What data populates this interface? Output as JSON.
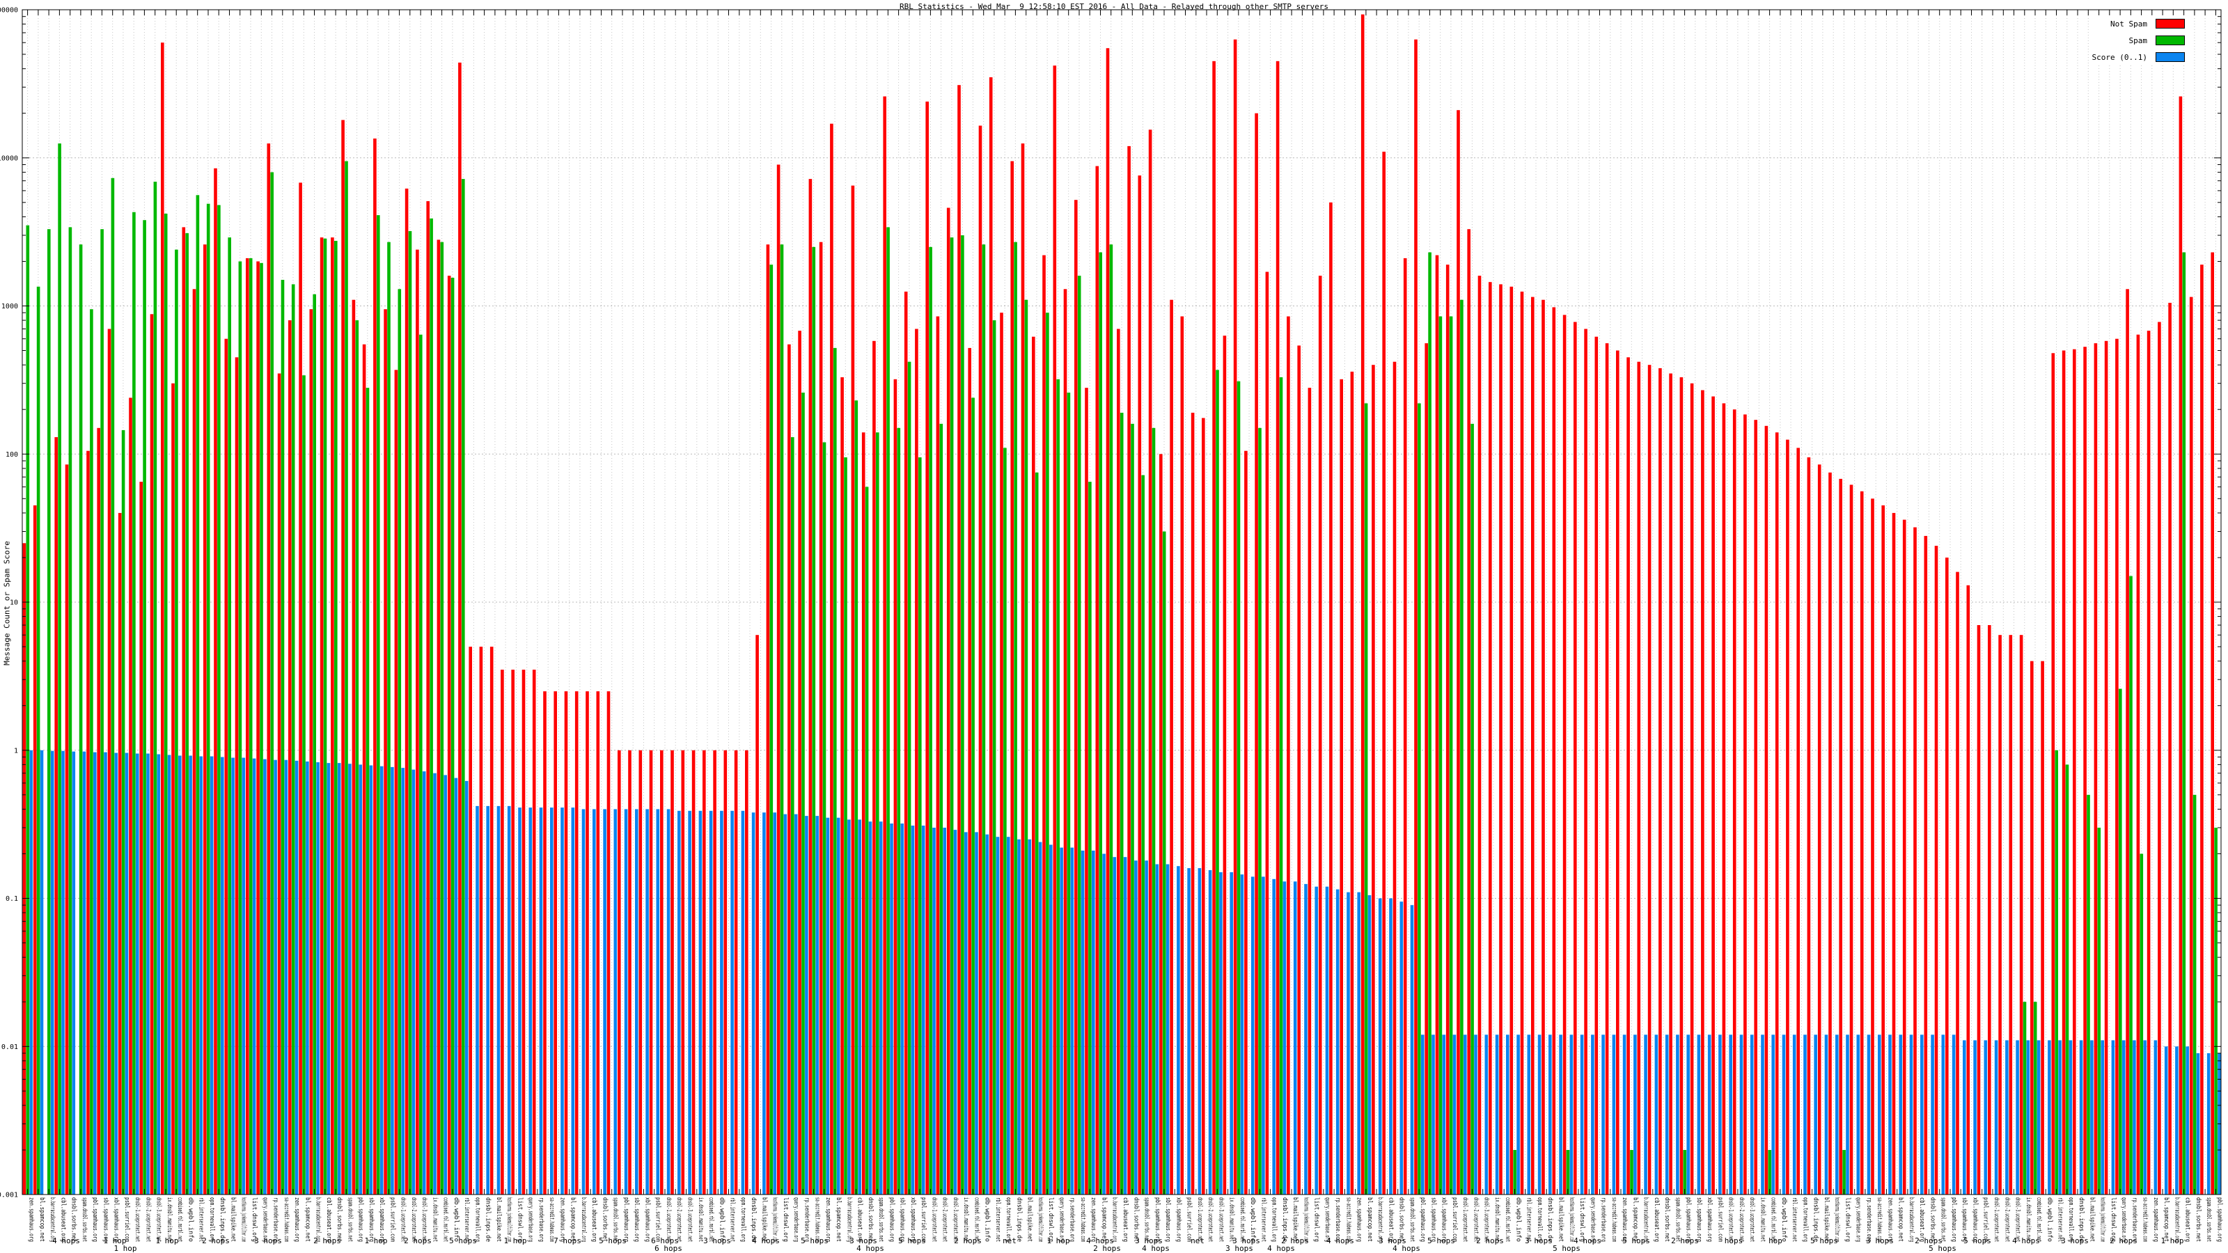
{
  "title": "RBL Statistics - Wed Mar  9 12:58:10 EST 2016 - All Data - Relayed through other SMTP servers",
  "legend": {
    "items": [
      {
        "label": "Not Spam",
        "color": "#ff0000"
      },
      {
        "label": "Spam",
        "color": "#00b800"
      },
      {
        "label": "Score (0..1)",
        "color": "#0b85f0"
      }
    ]
  },
  "y_axis": {
    "label": "Message Count or Spam Score",
    "scale": "log",
    "min": 0.001,
    "max": 100000,
    "tick_labels": [
      "100000",
      "10000",
      "1000",
      "100",
      "10",
      "1",
      "0.1",
      "0.01",
      "0.001"
    ]
  },
  "x_axis": {
    "hops_labels_row1": [
      {
        "t": "4 hops",
        "x": 95
      },
      {
        "t": "1 hop",
        "x": 165
      },
      {
        "t": "1 hop",
        "x": 240
      },
      {
        "t": "2 hops",
        "x": 310
      },
      {
        "t": "3 hops",
        "x": 385
      },
      {
        "t": "2 hops",
        "x": 470
      },
      {
        "t": "1 hop",
        "x": 540
      },
      {
        "t": "2 hops",
        "x": 600
      },
      {
        "t": "5 hops",
        "x": 665
      },
      {
        "t": "1 hop",
        "x": 740
      },
      {
        "t": "7 hops",
        "x": 815
      },
      {
        "t": "5 hops",
        "x": 880
      },
      {
        "t": "6 hops",
        "x": 955
      },
      {
        "t": "3 hops",
        "x": 1030
      },
      {
        "t": "4 hops",
        "x": 1100
      },
      {
        "t": "5 hops",
        "x": 1170
      },
      {
        "t": "3 hops",
        "x": 1240
      },
      {
        "t": "5 hops",
        "x": 1310
      },
      {
        "t": "2 hops",
        "x": 1390
      },
      {
        "t": "net",
        "x": 1450
      },
      {
        "t": "1 hop",
        "x": 1520
      },
      {
        "t": "4 hops",
        "x": 1580
      },
      {
        "t": "3 hops",
        "x": 1650
      },
      {
        "t": "net",
        "x": 1720
      },
      {
        "t": "3 hops",
        "x": 1790
      },
      {
        "t": "2 hops",
        "x": 1860
      },
      {
        "t": "4 hops",
        "x": 1925
      },
      {
        "t": "3 hops",
        "x": 2000
      },
      {
        "t": "5 hops",
        "x": 2070
      },
      {
        "t": "2 hops",
        "x": 2140
      },
      {
        "t": "3 hops",
        "x": 2210
      },
      {
        "t": "4 hops",
        "x": 2280
      },
      {
        "t": "5 hops",
        "x": 2350
      },
      {
        "t": "2 hops",
        "x": 2420
      },
      {
        "t": "hops",
        "x": 2490
      },
      {
        "t": "hop",
        "x": 2550
      },
      {
        "t": "5 hops",
        "x": 2620
      },
      {
        "t": "3 hops",
        "x": 2700
      },
      {
        "t": "2 hops",
        "x": 2770
      },
      {
        "t": "5 hops",
        "x": 2840
      },
      {
        "t": "4 hops",
        "x": 2910
      },
      {
        "t": "3 hops",
        "x": 2980
      },
      {
        "t": "2 hops",
        "x": 3050
      },
      {
        "t": "1 hop",
        "x": 3120
      }
    ],
    "hops_labels_row2": [
      {
        "t": "1 hop",
        "x": 180
      },
      {
        "t": "6 hops",
        "x": 960
      },
      {
        "t": "4 hops",
        "x": 1250
      },
      {
        "t": "2 hops",
        "x": 1590
      },
      {
        "t": "4 hops",
        "x": 1660
      },
      {
        "t": "3 hops",
        "x": 1780
      },
      {
        "t": "4 hops",
        "x": 1840
      },
      {
        "t": "4 hops",
        "x": 2020
      },
      {
        "t": "5 hops",
        "x": 2250
      },
      {
        "t": "5 hops",
        "x": 2790
      }
    ]
  },
  "chart_data": {
    "type": "bar",
    "log_scale": true,
    "ylim": [
      0.001,
      100000
    ],
    "grid": true,
    "legend_position": "top-right",
    "series_names": [
      "Not Spam",
      "Spam",
      "Score (0..1)"
    ],
    "series_colors": [
      "#ff0000",
      "#00b800",
      "#0b85f0"
    ],
    "rbl_names": [
      "zen.spamhaus.org",
      "bl.spamcop.net",
      "b.barracudacentral.org",
      "cbl.abuseat.org",
      "dnsbl.sorbs.net",
      "spam.dnsbl.sorbs.net",
      "pbl.spamhaus.org",
      "sbl.spamhaus.org",
      "xbl.spamhaus.org",
      "psbl.surriel.com",
      "dnsbl-1.uceprotect.net",
      "dnsbl-2.uceprotect.net",
      "dnsbl-3.uceprotect.net",
      "ix.dnsbl.manitu.net",
      "combined.rbl.msrbl.net",
      "db.wpbl.info",
      "rbl.interserver.net",
      "opm.tornevall.org",
      "dnsbl.inps.de",
      "bl.mailspike.net",
      "hostkarma.junkemailfilter.com",
      "list.dnswl.org",
      "query.senderbase.org",
      "rp.senderbase.org",
      "sa-accredit.habeas.com"
    ],
    "slots": [
      [
        25,
        3500,
        1
      ],
      [
        45,
        1350,
        1
      ],
      [
        0,
        3300,
        0.99
      ],
      [
        130,
        12500,
        0.99
      ],
      [
        85,
        3400,
        0.98
      ],
      [
        0,
        2600,
        0.98
      ],
      [
        105,
        950,
        0.97
      ],
      [
        150,
        3300,
        0.97
      ],
      [
        700,
        7300,
        0.96
      ],
      [
        40,
        145,
        0.96
      ],
      [
        240,
        4300,
        0.95
      ],
      [
        65,
        3800,
        0.95
      ],
      [
        880,
        6900,
        0.94
      ],
      [
        60000,
        4200,
        0.93
      ],
      [
        300,
        2400,
        0.92
      ],
      [
        3400,
        3100,
        0.92
      ],
      [
        1300,
        5600,
        0.91
      ],
      [
        2600,
        4900,
        0.91
      ],
      [
        8500,
        4800,
        0.9
      ],
      [
        600,
        2900,
        0.89
      ],
      [
        450,
        2000,
        0.89
      ],
      [
        2100,
        2100,
        0.88
      ],
      [
        2000,
        1950,
        0.87
      ],
      [
        12500,
        8000,
        0.86
      ],
      [
        350,
        1500,
        0.86
      ],
      [
        800,
        1400,
        0.85
      ],
      [
        6800,
        340,
        0.84
      ],
      [
        950,
        1200,
        0.83
      ],
      [
        2900,
        2850,
        0.82
      ],
      [
        2900,
        2750,
        0.82
      ],
      [
        18000,
        9500,
        0.81
      ],
      [
        1100,
        800,
        0.8
      ],
      [
        550,
        280,
        0.79
      ],
      [
        13500,
        4100,
        0.78
      ],
      [
        950,
        2700,
        0.77
      ],
      [
        370,
        1300,
        0.76
      ],
      [
        6200,
        3200,
        0.74
      ],
      [
        2400,
        640,
        0.72
      ],
      [
        5100,
        3900,
        0.7
      ],
      [
        2800,
        2700,
        0.68
      ],
      [
        1600,
        1550,
        0.65
      ],
      [
        44000,
        7200,
        0.62
      ],
      [
        5,
        0,
        0.42
      ],
      [
        5,
        0,
        0.42
      ],
      [
        5,
        0,
        0.42
      ],
      [
        3.5,
        0,
        0.42
      ],
      [
        3.5,
        0,
        0.41
      ],
      [
        3.5,
        0,
        0.41
      ],
      [
        3.5,
        0,
        0.41
      ],
      [
        2.5,
        0,
        0.41
      ],
      [
        2.5,
        0,
        0.41
      ],
      [
        2.5,
        0,
        0.41
      ],
      [
        2.5,
        0,
        0.4
      ],
      [
        2.5,
        0,
        0.4
      ],
      [
        2.5,
        0,
        0.4
      ],
      [
        2.5,
        0,
        0.4
      ],
      [
        1,
        0,
        0.4
      ],
      [
        1,
        0,
        0.4
      ],
      [
        1,
        0,
        0.4
      ],
      [
        1,
        0,
        0.4
      ],
      [
        1,
        0,
        0.4
      ],
      [
        1,
        0,
        0.39
      ],
      [
        1,
        0,
        0.39
      ],
      [
        1,
        0,
        0.39
      ],
      [
        1,
        0,
        0.39
      ],
      [
        1,
        0,
        0.39
      ],
      [
        1,
        0,
        0.39
      ],
      [
        1,
        0,
        0.39
      ],
      [
        1,
        0,
        0.38
      ],
      [
        6,
        0,
        0.38
      ],
      [
        2600,
        1900,
        0.38
      ],
      [
        9000,
        2600,
        0.37
      ],
      [
        550,
        130,
        0.37
      ],
      [
        680,
        260,
        0.36
      ],
      [
        7200,
        2500,
        0.36
      ],
      [
        2700,
        120,
        0.35
      ],
      [
        17000,
        520,
        0.35
      ],
      [
        330,
        95,
        0.34
      ],
      [
        6500,
        230,
        0.34
      ],
      [
        140,
        60,
        0.33
      ],
      [
        580,
        140,
        0.33
      ],
      [
        26000,
        3400,
        0.32
      ],
      [
        320,
        150,
        0.32
      ],
      [
        1250,
        420,
        0.31
      ],
      [
        700,
        95,
        0.31
      ],
      [
        24000,
        2500,
        0.3
      ],
      [
        850,
        160,
        0.3
      ],
      [
        4600,
        2900,
        0.29
      ],
      [
        31000,
        3000,
        0.28
      ],
      [
        520,
        240,
        0.28
      ],
      [
        16500,
        2600,
        0.27
      ],
      [
        35000,
        800,
        0.26
      ],
      [
        900,
        110,
        0.26
      ],
      [
        9500,
        2700,
        0.25
      ],
      [
        12500,
        1100,
        0.25
      ],
      [
        620,
        75,
        0.24
      ],
      [
        2200,
        900,
        0.23
      ],
      [
        42000,
        320,
        0.22
      ],
      [
        1300,
        260,
        0.22
      ],
      [
        5200,
        1600,
        0.21
      ],
      [
        280,
        65,
        0.21
      ],
      [
        8800,
        2300,
        0.2
      ],
      [
        55000,
        2600,
        0.19
      ],
      [
        700,
        190,
        0.19
      ],
      [
        12000,
        160,
        0.18
      ],
      [
        7600,
        72,
        0.18
      ],
      [
        15500,
        150,
        0.17
      ],
      [
        100,
        30,
        0.17
      ],
      [
        1100,
        0,
        0.165
      ],
      [
        850,
        0,
        0.16
      ],
      [
        190,
        0,
        0.16
      ],
      [
        175,
        0,
        0.155
      ],
      [
        45000,
        370,
        0.15
      ],
      [
        630,
        0,
        0.15
      ],
      [
        63000,
        310,
        0.145
      ],
      [
        105,
        0,
        0.14
      ],
      [
        20000,
        150,
        0.14
      ],
      [
        1700,
        0,
        0.135
      ],
      [
        45000,
        330,
        0.13
      ],
      [
        850,
        0,
        0.13
      ],
      [
        540,
        0,
        0.125
      ],
      [
        280,
        0,
        0.12
      ],
      [
        1600,
        0,
        0.12
      ],
      [
        5000,
        0,
        0.115
      ],
      [
        320,
        0,
        0.11
      ],
      [
        360,
        0,
        0.11
      ],
      [
        93000,
        220,
        0.105
      ],
      [
        400,
        0,
        0.1
      ],
      [
        11000,
        0,
        0.1
      ],
      [
        420,
        0,
        0.095
      ],
      [
        2100,
        0,
        0.09
      ],
      [
        63000,
        220,
        0.012
      ],
      [
        560,
        2300,
        0.012
      ],
      [
        2200,
        850,
        0.012
      ],
      [
        1900,
        850,
        0.012
      ],
      [
        21000,
        1100,
        0.012
      ],
      [
        3300,
        160,
        0.012
      ],
      [
        1600,
        0,
        0.012
      ],
      [
        1450,
        0,
        0.012
      ],
      [
        1400,
        0,
        0.012
      ],
      [
        1350,
        0.002,
        0.012
      ],
      [
        1250,
        0,
        0.012
      ],
      [
        1150,
        0,
        0.012
      ],
      [
        1100,
        0,
        0.012
      ],
      [
        980,
        0,
        0.012
      ],
      [
        870,
        0.002,
        0.012
      ],
      [
        780,
        0,
        0.012
      ],
      [
        700,
        0,
        0.012
      ],
      [
        620,
        0,
        0.012
      ],
      [
        560,
        0,
        0.012
      ],
      [
        500,
        0,
        0.012
      ],
      [
        450,
        0.002,
        0.012
      ],
      [
        420,
        0,
        0.012
      ],
      [
        400,
        0,
        0.012
      ],
      [
        380,
        0,
        0.012
      ],
      [
        350,
        0,
        0.012
      ],
      [
        330,
        0.002,
        0.012
      ],
      [
        300,
        0,
        0.012
      ],
      [
        270,
        0,
        0.012
      ],
      [
        245,
        0,
        0.012
      ],
      [
        220,
        0,
        0.012
      ],
      [
        200,
        0,
        0.012
      ],
      [
        185,
        0,
        0.012
      ],
      [
        170,
        0,
        0.012
      ],
      [
        155,
        0.002,
        0.012
      ],
      [
        140,
        0,
        0.012
      ],
      [
        125,
        0,
        0.012
      ],
      [
        110,
        0,
        0.012
      ],
      [
        95,
        0,
        0.012
      ],
      [
        85,
        0,
        0.012
      ],
      [
        75,
        0,
        0.012
      ],
      [
        68,
        0.002,
        0.012
      ],
      [
        62,
        0,
        0.012
      ],
      [
        56,
        0,
        0.012
      ],
      [
        50,
        0,
        0.012
      ],
      [
        45,
        0,
        0.012
      ],
      [
        40,
        0,
        0.012
      ],
      [
        36,
        0,
        0.012
      ],
      [
        32,
        0,
        0.012
      ],
      [
        28,
        0,
        0.012
      ],
      [
        24,
        0,
        0.012
      ],
      [
        20,
        0,
        0.012
      ],
      [
        16,
        0,
        0.011
      ],
      [
        13,
        0,
        0.011
      ],
      [
        7,
        0,
        0.011
      ],
      [
        7,
        0,
        0.011
      ],
      [
        6,
        0,
        0.011
      ],
      [
        6,
        0,
        0.011
      ],
      [
        6,
        0.02,
        0.011
      ],
      [
        4,
        0.02,
        0.011
      ],
      [
        4,
        0,
        0.011
      ],
      [
        480,
        1,
        0.011
      ],
      [
        500,
        0.8,
        0.011
      ],
      [
        510,
        0,
        0.011
      ],
      [
        530,
        0.5,
        0.011
      ],
      [
        560,
        0.3,
        0.011
      ],
      [
        580,
        0,
        0.011
      ],
      [
        600,
        2.6,
        0.011
      ],
      [
        1300,
        15,
        0.011
      ],
      [
        640,
        0.2,
        0.011
      ],
      [
        680,
        0,
        0.011
      ],
      [
        780,
        0,
        0.01
      ],
      [
        1050,
        0,
        0.01
      ],
      [
        26000,
        2300,
        0.01
      ],
      [
        1150,
        0.5,
        0.009
      ],
      [
        1900,
        0,
        0.009
      ],
      [
        2300,
        0.3,
        0.009
      ]
    ]
  }
}
